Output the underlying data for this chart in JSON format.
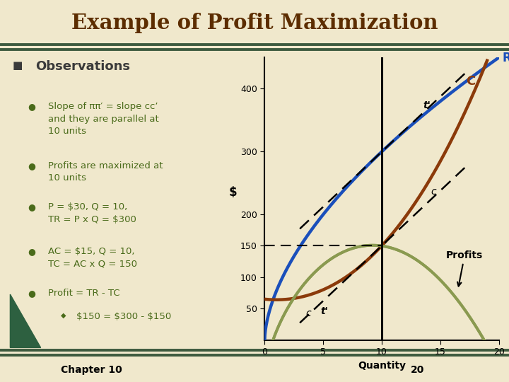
{
  "title": "Example of Profit Maximization",
  "background_color": "#f0e8cc",
  "title_color": "#5c2d00",
  "title_bg_color": "#d4c484",
  "header_line_color": "#3d5a3e",
  "chapter": "Chapter 10",
  "slide_number": "20",
  "chart": {
    "xlim": [
      0,
      20
    ],
    "ylim": [
      0,
      450
    ],
    "xticks": [
      0,
      5,
      10,
      15,
      20
    ],
    "yticks": [
      50,
      100,
      150,
      200,
      300,
      400
    ],
    "xlabel": "Quantity",
    "ylabel": "$",
    "tr_color": "#1a4fbb",
    "tc_color": "#8b3a0a",
    "profit_color": "#8a9a50",
    "vline_x": 10,
    "hline_y": 150
  },
  "text_color": "#4a6b1a",
  "obs_bullet_color": "#3a3a3a"
}
